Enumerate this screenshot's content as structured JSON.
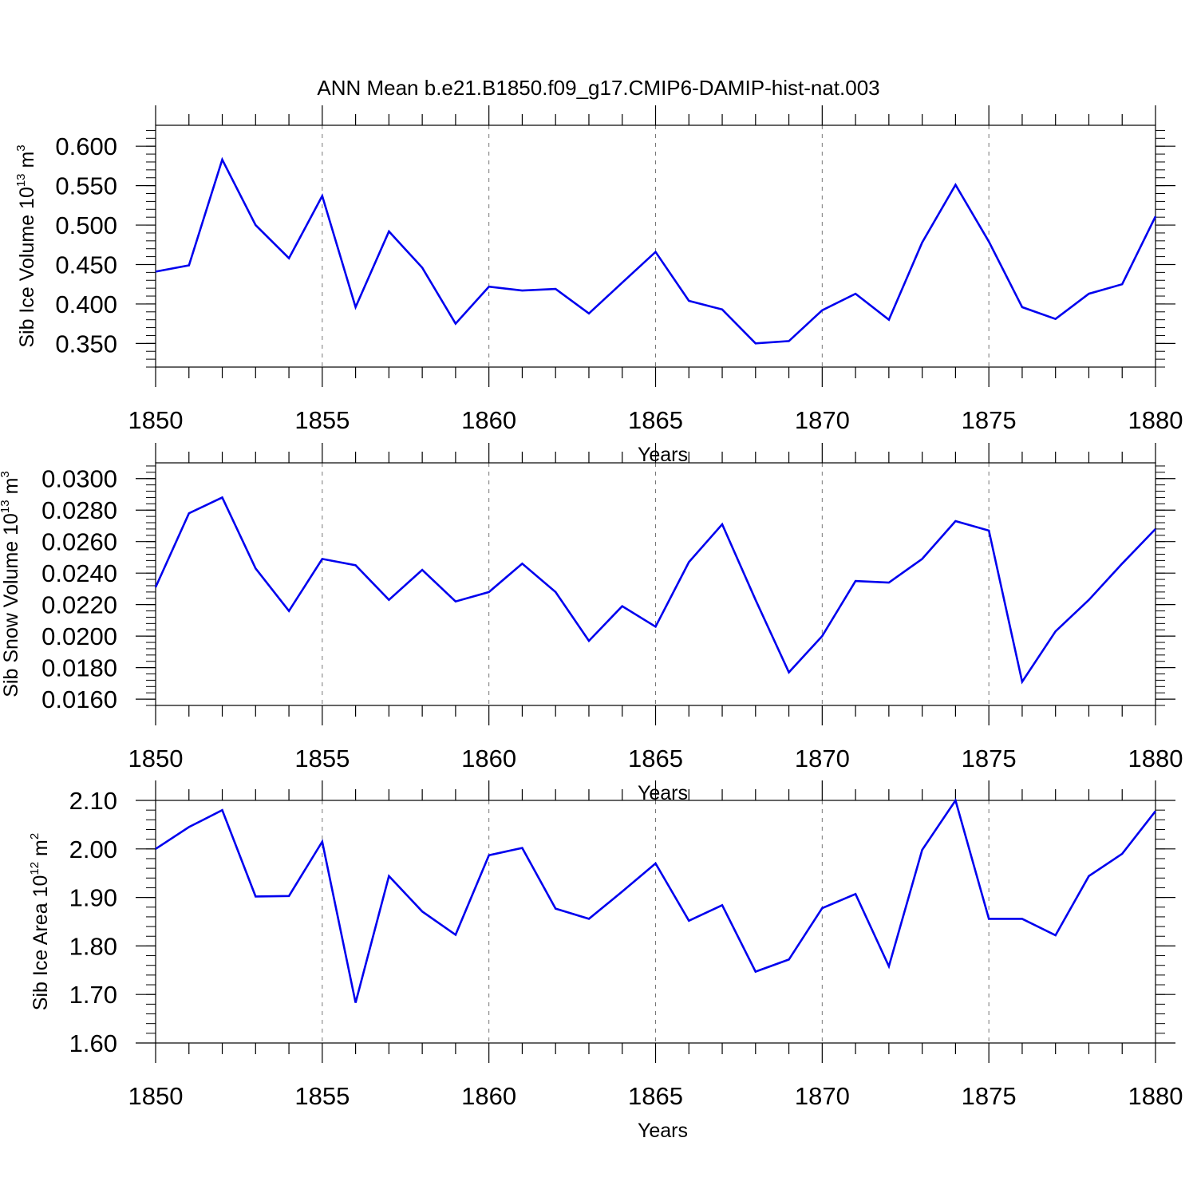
{
  "title": "ANN Mean b.e21.B1850.f09_g17.CMIP6-DAMIP-hist-nat.003",
  "colors": {
    "line": "#0000ee",
    "axis": "#000000",
    "grid": "#777777"
  },
  "chart_data": [
    {
      "type": "line",
      "ylabel": {
        "text": "Sib Ice Volume 10",
        "exp": "13",
        "unit": "m",
        "unit_exp": "3"
      },
      "xlabel": "Years",
      "xlim": [
        1850,
        1880
      ],
      "ylim": [
        0.32,
        0.6265
      ],
      "yticks": [
        0.35,
        0.4,
        0.45,
        0.5,
        0.55,
        0.6
      ],
      "ytick_labels": [
        "0.350",
        "0.400",
        "0.450",
        "0.500",
        "0.550",
        "0.600"
      ],
      "yminor_step": 0.01,
      "xticks": [
        1850,
        1855,
        1860,
        1865,
        1870,
        1875,
        1880
      ],
      "xtick_labels": [
        "1850",
        "1855",
        "1860",
        "1865",
        "1870",
        "1875",
        "1880"
      ],
      "grid": "dashed vertical at major x ticks",
      "x": [
        1850,
        1851,
        1852,
        1853,
        1854,
        1855,
        1856,
        1857,
        1858,
        1859,
        1860,
        1861,
        1862,
        1863,
        1864,
        1865,
        1866,
        1867,
        1868,
        1869,
        1870,
        1871,
        1872,
        1873,
        1874,
        1875,
        1876,
        1877,
        1878,
        1879,
        1880
      ],
      "values": [
        0.441,
        0.449,
        0.583,
        0.5,
        0.458,
        0.537,
        0.396,
        0.492,
        0.446,
        0.375,
        0.422,
        0.417,
        0.419,
        0.388,
        0.427,
        0.466,
        0.404,
        0.393,
        0.35,
        0.353,
        0.392,
        0.413,
        0.38,
        0.478,
        0.551,
        0.479,
        0.396,
        0.381,
        0.413,
        0.425,
        0.511
      ]
    },
    {
      "type": "line",
      "ylabel": {
        "text": "Sib Snow Volume 10",
        "exp": "13",
        "unit": "m",
        "unit_exp": "3"
      },
      "xlabel": "Years",
      "xlim": [
        1850,
        1880
      ],
      "ylim": [
        0.0156,
        0.031
      ],
      "yticks": [
        0.016,
        0.018,
        0.02,
        0.022,
        0.024,
        0.026,
        0.028,
        0.03
      ],
      "ytick_labels": [
        "0.0160",
        "0.0180",
        "0.0200",
        "0.0220",
        "0.0240",
        "0.0260",
        "0.0280",
        "0.0300"
      ],
      "yminor_step": 0.0004,
      "xticks": [
        1850,
        1855,
        1860,
        1865,
        1870,
        1875,
        1880
      ],
      "xtick_labels": [
        "1850",
        "1855",
        "1860",
        "1865",
        "1870",
        "1875",
        "1880"
      ],
      "grid": "dashed vertical at major x ticks",
      "x": [
        1850,
        1851,
        1852,
        1853,
        1854,
        1855,
        1856,
        1857,
        1858,
        1859,
        1860,
        1861,
        1862,
        1863,
        1864,
        1865,
        1866,
        1867,
        1868,
        1869,
        1870,
        1871,
        1872,
        1873,
        1874,
        1875,
        1876,
        1877,
        1878,
        1879,
        1880
      ],
      "values": [
        0.0231,
        0.0278,
        0.0288,
        0.0243,
        0.0216,
        0.0249,
        0.0245,
        0.0223,
        0.0242,
        0.0222,
        0.0228,
        0.0246,
        0.0228,
        0.0197,
        0.0219,
        0.0206,
        0.0247,
        0.0271,
        0.0223,
        0.0177,
        0.02,
        0.0235,
        0.0234,
        0.0249,
        0.0273,
        0.0267,
        0.0171,
        0.0203,
        0.0223,
        0.0246,
        0.0268
      ]
    },
    {
      "type": "line",
      "ylabel": {
        "text": "Sib Ice Area 10",
        "exp": "12",
        "unit": "m",
        "unit_exp": "2"
      },
      "xlabel": "Years",
      "xlim": [
        1850,
        1880
      ],
      "ylim": [
        1.6,
        2.1
      ],
      "yticks": [
        1.6,
        1.7,
        1.8,
        1.9,
        2.0,
        2.1
      ],
      "ytick_labels": [
        "1.60",
        "1.70",
        "1.80",
        "1.90",
        "2.00",
        "2.10"
      ],
      "yminor_step": 0.02,
      "xticks": [
        1850,
        1855,
        1860,
        1865,
        1870,
        1875,
        1880
      ],
      "xtick_labels": [
        "1850",
        "1855",
        "1860",
        "1865",
        "1870",
        "1875",
        "1880"
      ],
      "grid": "dashed vertical at major x ticks",
      "x": [
        1850,
        1851,
        1852,
        1853,
        1854,
        1855,
        1856,
        1857,
        1858,
        1859,
        1860,
        1861,
        1862,
        1863,
        1864,
        1865,
        1866,
        1867,
        1868,
        1869,
        1870,
        1871,
        1872,
        1873,
        1874,
        1875,
        1876,
        1877,
        1878,
        1879,
        1880
      ],
      "values": [
        2.0,
        2.045,
        2.08,
        1.902,
        1.903,
        2.015,
        1.683,
        1.944,
        1.871,
        1.823,
        1.987,
        2.002,
        1.877,
        1.856,
        1.912,
        1.97,
        1.852,
        1.884,
        1.747,
        1.772,
        1.878,
        1.907,
        1.758,
        1.998,
        2.1,
        1.856,
        1.856,
        1.822,
        1.944,
        1.99,
        2.078
      ]
    }
  ]
}
